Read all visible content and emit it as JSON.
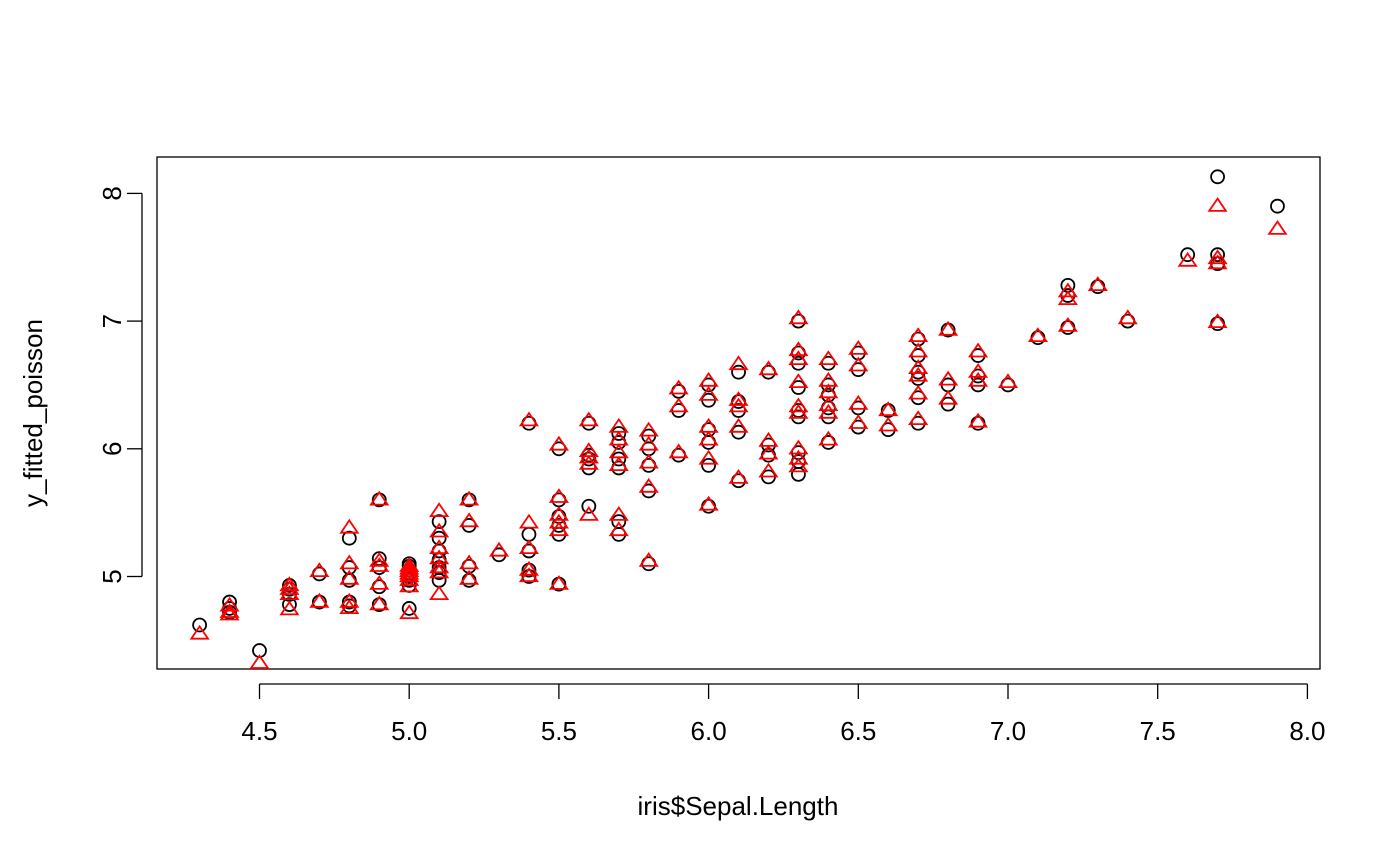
{
  "chart_data": {
    "type": "scatter",
    "xlabel": "iris$Sepal.Length",
    "ylabel": "y_fitted_poisson",
    "xlim": [
      4.3,
      7.9
    ],
    "ylim": [
      4.28,
      8.3
    ],
    "xticks": [
      "4.5",
      "5.0",
      "5.5",
      "6.0",
      "6.5",
      "7.0",
      "7.5",
      "8.0"
    ],
    "yticks": [
      "5",
      "6",
      "7",
      "8"
    ],
    "grid": false,
    "legend": "none",
    "series": [
      {
        "marker": "circle",
        "color": "#000000",
        "points": [
          [
            4.3,
            4.62
          ],
          [
            4.4,
            4.8
          ],
          [
            4.4,
            4.75
          ],
          [
            4.4,
            4.72
          ],
          [
            4.5,
            4.42
          ],
          [
            4.6,
            4.78
          ],
          [
            4.6,
            4.86
          ],
          [
            4.6,
            4.9
          ],
          [
            4.6,
            4.93
          ],
          [
            4.7,
            4.8
          ],
          [
            4.7,
            5.02
          ],
          [
            4.8,
            4.77
          ],
          [
            4.8,
            4.8
          ],
          [
            4.8,
            4.97
          ],
          [
            4.8,
            5.07
          ],
          [
            4.8,
            5.3
          ],
          [
            4.9,
            4.78
          ],
          [
            4.9,
            4.92
          ],
          [
            4.9,
            5.07
          ],
          [
            4.9,
            5.14
          ],
          [
            4.9,
            5.6
          ],
          [
            5.0,
            4.75
          ],
          [
            5.0,
            4.93
          ],
          [
            5.0,
            4.97
          ],
          [
            5.0,
            5.0
          ],
          [
            5.0,
            5.03
          ],
          [
            5.0,
            5.05
          ],
          [
            5.0,
            5.08
          ],
          [
            5.0,
            5.1
          ],
          [
            5.1,
            4.97
          ],
          [
            5.1,
            5.03
          ],
          [
            5.1,
            5.07
          ],
          [
            5.1,
            5.13
          ],
          [
            5.1,
            5.2
          ],
          [
            5.1,
            5.3
          ],
          [
            5.1,
            5.43
          ],
          [
            5.2,
            4.97
          ],
          [
            5.2,
            5.08
          ],
          [
            5.2,
            5.4
          ],
          [
            5.2,
            5.6
          ],
          [
            5.3,
            5.17
          ],
          [
            5.4,
            5.0
          ],
          [
            5.4,
            5.05
          ],
          [
            5.4,
            5.2
          ],
          [
            5.4,
            5.33
          ],
          [
            5.4,
            6.2
          ],
          [
            5.5,
            4.94
          ],
          [
            5.5,
            5.33
          ],
          [
            5.5,
            5.4
          ],
          [
            5.5,
            5.47
          ],
          [
            5.5,
            5.6
          ],
          [
            5.5,
            6.0
          ],
          [
            5.6,
            5.55
          ],
          [
            5.6,
            5.85
          ],
          [
            5.6,
            5.92
          ],
          [
            5.6,
            5.95
          ],
          [
            5.6,
            6.2
          ],
          [
            5.7,
            5.33
          ],
          [
            5.7,
            5.43
          ],
          [
            5.7,
            5.85
          ],
          [
            5.7,
            5.92
          ],
          [
            5.7,
            6.05
          ],
          [
            5.7,
            6.12
          ],
          [
            5.8,
            5.1
          ],
          [
            5.8,
            5.67
          ],
          [
            5.8,
            5.87
          ],
          [
            5.8,
            6.0
          ],
          [
            5.8,
            6.1
          ],
          [
            5.9,
            5.95
          ],
          [
            5.9,
            6.3
          ],
          [
            5.9,
            6.45
          ],
          [
            6.0,
            5.55
          ],
          [
            6.0,
            5.87
          ],
          [
            6.0,
            6.05
          ],
          [
            6.0,
            6.15
          ],
          [
            6.0,
            6.38
          ],
          [
            6.0,
            6.5
          ],
          [
            6.1,
            5.75
          ],
          [
            6.1,
            6.13
          ],
          [
            6.1,
            6.3
          ],
          [
            6.1,
            6.37
          ],
          [
            6.1,
            6.6
          ],
          [
            6.2,
            5.78
          ],
          [
            6.2,
            5.95
          ],
          [
            6.2,
            6.03
          ],
          [
            6.2,
            6.6
          ],
          [
            6.3,
            5.8
          ],
          [
            6.3,
            5.9
          ],
          [
            6.3,
            5.97
          ],
          [
            6.3,
            6.25
          ],
          [
            6.3,
            6.3
          ],
          [
            6.3,
            6.48
          ],
          [
            6.3,
            6.67
          ],
          [
            6.3,
            6.75
          ],
          [
            6.3,
            7.0
          ],
          [
            6.4,
            6.05
          ],
          [
            6.4,
            6.25
          ],
          [
            6.4,
            6.32
          ],
          [
            6.4,
            6.42
          ],
          [
            6.4,
            6.5
          ],
          [
            6.4,
            6.67
          ],
          [
            6.5,
            6.17
          ],
          [
            6.5,
            6.32
          ],
          [
            6.5,
            6.62
          ],
          [
            6.5,
            6.75
          ],
          [
            6.6,
            6.15
          ],
          [
            6.6,
            6.3
          ],
          [
            6.7,
            6.2
          ],
          [
            6.7,
            6.4
          ],
          [
            6.7,
            6.55
          ],
          [
            6.7,
            6.6
          ],
          [
            6.7,
            6.73
          ],
          [
            6.7,
            6.86
          ],
          [
            6.8,
            6.35
          ],
          [
            6.8,
            6.5
          ],
          [
            6.8,
            6.93
          ],
          [
            6.9,
            6.2
          ],
          [
            6.9,
            6.5
          ],
          [
            6.9,
            6.57
          ],
          [
            6.9,
            6.73
          ],
          [
            7.0,
            6.5
          ],
          [
            7.1,
            6.87
          ],
          [
            7.2,
            6.95
          ],
          [
            7.2,
            7.2
          ],
          [
            7.2,
            7.28
          ],
          [
            7.3,
            7.27
          ],
          [
            7.4,
            7.0
          ],
          [
            7.6,
            7.52
          ],
          [
            7.7,
            6.98
          ],
          [
            7.7,
            7.45
          ],
          [
            7.7,
            7.52
          ],
          [
            7.7,
            8.13
          ],
          [
            7.9,
            7.9
          ]
        ]
      },
      {
        "marker": "triangle",
        "color": "#ff0000",
        "points": [
          [
            4.3,
            4.55
          ],
          [
            4.4,
            4.77
          ],
          [
            4.4,
            4.72
          ],
          [
            4.4,
            4.7
          ],
          [
            4.5,
            4.32
          ],
          [
            4.6,
            4.74
          ],
          [
            4.6,
            4.86
          ],
          [
            4.6,
            4.9
          ],
          [
            4.6,
            4.93
          ],
          [
            4.7,
            4.8
          ],
          [
            4.7,
            5.04
          ],
          [
            4.8,
            4.75
          ],
          [
            4.8,
            4.8
          ],
          [
            4.8,
            4.98
          ],
          [
            4.8,
            5.1
          ],
          [
            4.8,
            5.38
          ],
          [
            4.9,
            4.78
          ],
          [
            4.9,
            4.94
          ],
          [
            4.9,
            5.08
          ],
          [
            4.9,
            5.12
          ],
          [
            4.9,
            5.6
          ],
          [
            5.0,
            4.71
          ],
          [
            5.0,
            4.92
          ],
          [
            5.0,
            4.97
          ],
          [
            5.0,
            5.0
          ],
          [
            5.0,
            5.02
          ],
          [
            5.0,
            5.04
          ],
          [
            5.0,
            5.06
          ],
          [
            5.0,
            5.08
          ],
          [
            5.1,
            4.86
          ],
          [
            5.1,
            5.03
          ],
          [
            5.1,
            5.07
          ],
          [
            5.1,
            5.14
          ],
          [
            5.1,
            5.22
          ],
          [
            5.1,
            5.35
          ],
          [
            5.1,
            5.51
          ],
          [
            5.2,
            4.98
          ],
          [
            5.2,
            5.1
          ],
          [
            5.2,
            5.43
          ],
          [
            5.2,
            5.6
          ],
          [
            5.3,
            5.2
          ],
          [
            5.4,
            5.0
          ],
          [
            5.4,
            5.05
          ],
          [
            5.4,
            5.22
          ],
          [
            5.4,
            5.42
          ],
          [
            5.4,
            6.22
          ],
          [
            5.5,
            4.94
          ],
          [
            5.5,
            5.36
          ],
          [
            5.5,
            5.42
          ],
          [
            5.5,
            5.48
          ],
          [
            5.5,
            5.62
          ],
          [
            5.5,
            6.03
          ],
          [
            5.6,
            5.48
          ],
          [
            5.6,
            5.88
          ],
          [
            5.6,
            5.93
          ],
          [
            5.6,
            5.98
          ],
          [
            5.6,
            6.22
          ],
          [
            5.7,
            5.36
          ],
          [
            5.7,
            5.48
          ],
          [
            5.7,
            5.87
          ],
          [
            5.7,
            5.97
          ],
          [
            5.7,
            6.07
          ],
          [
            5.7,
            6.17
          ],
          [
            5.8,
            5.12
          ],
          [
            5.8,
            5.7
          ],
          [
            5.8,
            5.89
          ],
          [
            5.8,
            6.03
          ],
          [
            5.8,
            6.14
          ],
          [
            5.9,
            5.97
          ],
          [
            5.9,
            6.33
          ],
          [
            5.9,
            6.47
          ],
          [
            6.0,
            5.56
          ],
          [
            6.0,
            5.92
          ],
          [
            6.0,
            6.07
          ],
          [
            6.0,
            6.17
          ],
          [
            6.0,
            6.42
          ],
          [
            6.0,
            6.53
          ],
          [
            6.1,
            5.77
          ],
          [
            6.1,
            6.17
          ],
          [
            6.1,
            6.33
          ],
          [
            6.1,
            6.38
          ],
          [
            6.1,
            6.66
          ],
          [
            6.2,
            5.82
          ],
          [
            6.2,
            5.96
          ],
          [
            6.2,
            6.06
          ],
          [
            6.2,
            6.62
          ],
          [
            6.3,
            5.86
          ],
          [
            6.3,
            5.92
          ],
          [
            6.3,
            6.0
          ],
          [
            6.3,
            6.28
          ],
          [
            6.3,
            6.33
          ],
          [
            6.3,
            6.52
          ],
          [
            6.3,
            6.7
          ],
          [
            6.3,
            6.77
          ],
          [
            6.3,
            7.02
          ],
          [
            6.4,
            6.07
          ],
          [
            6.4,
            6.28
          ],
          [
            6.4,
            6.34
          ],
          [
            6.4,
            6.44
          ],
          [
            6.4,
            6.53
          ],
          [
            6.4,
            6.7
          ],
          [
            6.5,
            6.2
          ],
          [
            6.5,
            6.35
          ],
          [
            6.5,
            6.65
          ],
          [
            6.5,
            6.78
          ],
          [
            6.6,
            6.18
          ],
          [
            6.6,
            6.3
          ],
          [
            6.7,
            6.23
          ],
          [
            6.7,
            6.43
          ],
          [
            6.7,
            6.57
          ],
          [
            6.7,
            6.63
          ],
          [
            6.7,
            6.76
          ],
          [
            6.7,
            6.88
          ],
          [
            6.8,
            6.39
          ],
          [
            6.8,
            6.54
          ],
          [
            6.8,
            6.93
          ],
          [
            6.9,
            6.21
          ],
          [
            6.9,
            6.53
          ],
          [
            6.9,
            6.6
          ],
          [
            6.9,
            6.76
          ],
          [
            7.0,
            6.52
          ],
          [
            7.1,
            6.88
          ],
          [
            7.2,
            6.96
          ],
          [
            7.2,
            7.17
          ],
          [
            7.2,
            7.23
          ],
          [
            7.3,
            7.28
          ],
          [
            7.4,
            7.02
          ],
          [
            7.6,
            7.47
          ],
          [
            7.7,
            6.99
          ],
          [
            7.7,
            7.45
          ],
          [
            7.7,
            7.49
          ],
          [
            7.7,
            7.9
          ],
          [
            7.9,
            7.72
          ]
        ]
      }
    ]
  }
}
